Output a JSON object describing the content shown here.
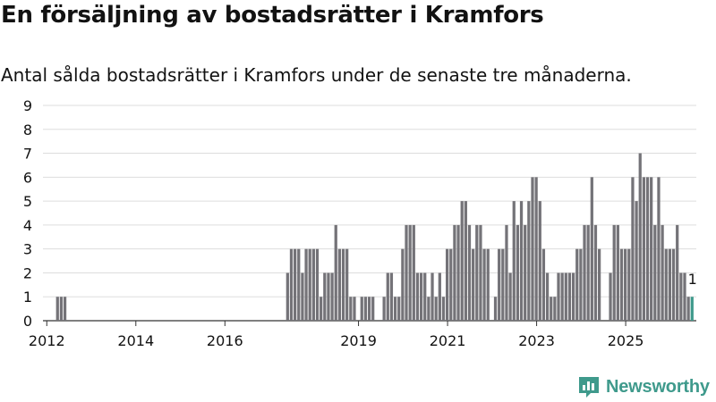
{
  "title": "En försäljning av bostadsrätter i Kramfors",
  "subtitle": "Antal sålda bostadsrätter i Kramfors under de senaste tre månaderna.",
  "brand": "Newsworthy",
  "colors": {
    "bar": "#747378",
    "highlight": "#3f9a8c",
    "grid": "#dddddd",
    "text": "#121212"
  },
  "chart_data": {
    "type": "bar",
    "title": "",
    "xlabel": "",
    "ylabel": "",
    "ylim": [
      0,
      9
    ],
    "yticks": [
      0,
      1,
      2,
      3,
      4,
      5,
      6,
      7,
      8,
      9
    ],
    "xticks": [
      "2012",
      "2014",
      "2016",
      "2019",
      "2021",
      "2023",
      "2025"
    ],
    "x_start": "2012-01",
    "grid": true,
    "highlight_last": true,
    "last_label": "1",
    "values": [
      0,
      0,
      0,
      1,
      1,
      1,
      0,
      0,
      0,
      0,
      0,
      0,
      0,
      0,
      0,
      0,
      0,
      0,
      0,
      0,
      0,
      0,
      0,
      0,
      0,
      0,
      0,
      0,
      0,
      0,
      0,
      0,
      0,
      0,
      0,
      0,
      0,
      0,
      0,
      0,
      0,
      0,
      0,
      0,
      0,
      0,
      0,
      0,
      0,
      0,
      0,
      0,
      0,
      0,
      0,
      0,
      0,
      0,
      0,
      0,
      0,
      0,
      0,
      0,
      0,
      2,
      3,
      3,
      3,
      2,
      3,
      3,
      3,
      3,
      1,
      2,
      2,
      2,
      4,
      3,
      3,
      3,
      1,
      1,
      0,
      1,
      1,
      1,
      1,
      0,
      0,
      1,
      2,
      2,
      1,
      1,
      3,
      4,
      4,
      4,
      2,
      2,
      2,
      1,
      2,
      1,
      2,
      1,
      3,
      3,
      4,
      4,
      5,
      5,
      4,
      3,
      4,
      4,
      3,
      3,
      0,
      1,
      3,
      3,
      4,
      2,
      5,
      4,
      5,
      4,
      5,
      6,
      6,
      5,
      3,
      2,
      1,
      1,
      2,
      2,
      2,
      2,
      2,
      3,
      3,
      4,
      4,
      6,
      4,
      3,
      0,
      0,
      2,
      4,
      4,
      3,
      3,
      3,
      6,
      5,
      7,
      6,
      6,
      6,
      4,
      6,
      4,
      3,
      3,
      3,
      4,
      2,
      2,
      1,
      1
    ]
  }
}
